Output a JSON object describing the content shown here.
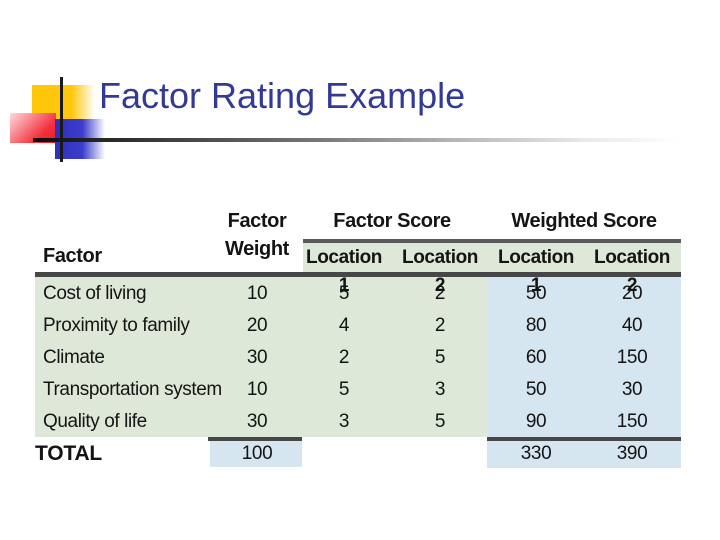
{
  "slide": {
    "title": "Factor Rating Example"
  },
  "table": {
    "headers": {
      "factor": "Factor",
      "factor_weight_line1": "Factor",
      "factor_weight_line2": "Weight",
      "factor_score": "Factor Score",
      "weighted_score": "Weighted Score",
      "fs_location1": "Location 1",
      "fs_location2": "Location 2",
      "ws_location1": "Location 1",
      "ws_location2": "Location 2"
    },
    "rows": [
      {
        "factor": "Cost of living",
        "weight": "10",
        "loc1_score": "5",
        "loc2_score": "2",
        "loc1_weighted": "50",
        "loc2_weighted": "20"
      },
      {
        "factor": "Proximity to family",
        "weight": "20",
        "loc1_score": "4",
        "loc2_score": "2",
        "loc1_weighted": "80",
        "loc2_weighted": "40"
      },
      {
        "factor": "Climate",
        "weight": "30",
        "loc1_score": "2",
        "loc2_score": "5",
        "loc1_weighted": "60",
        "loc2_weighted": "150"
      },
      {
        "factor": "Transportation system",
        "weight": "10",
        "loc1_score": "5",
        "loc2_score": "3",
        "loc1_weighted": "50",
        "loc2_weighted": "30"
      },
      {
        "factor": "Quality of life",
        "weight": "30",
        "loc1_score": "3",
        "loc2_score": "5",
        "loc1_weighted": "90",
        "loc2_weighted": "150"
      }
    ],
    "total": {
      "label": "TOTAL",
      "weight": "100",
      "loc1_weighted": "330",
      "loc2_weighted": "390"
    }
  },
  "colors": {
    "title_text": "#333a96",
    "factor_score_shading": "#dee8d8",
    "weighted_score_shading": "#d5e6f0",
    "rule_dark": "#474747",
    "decoration_yellow": "#ffc60a",
    "decoration_red": "#ec1c28",
    "decoration_blue": "#3d3dcd"
  }
}
